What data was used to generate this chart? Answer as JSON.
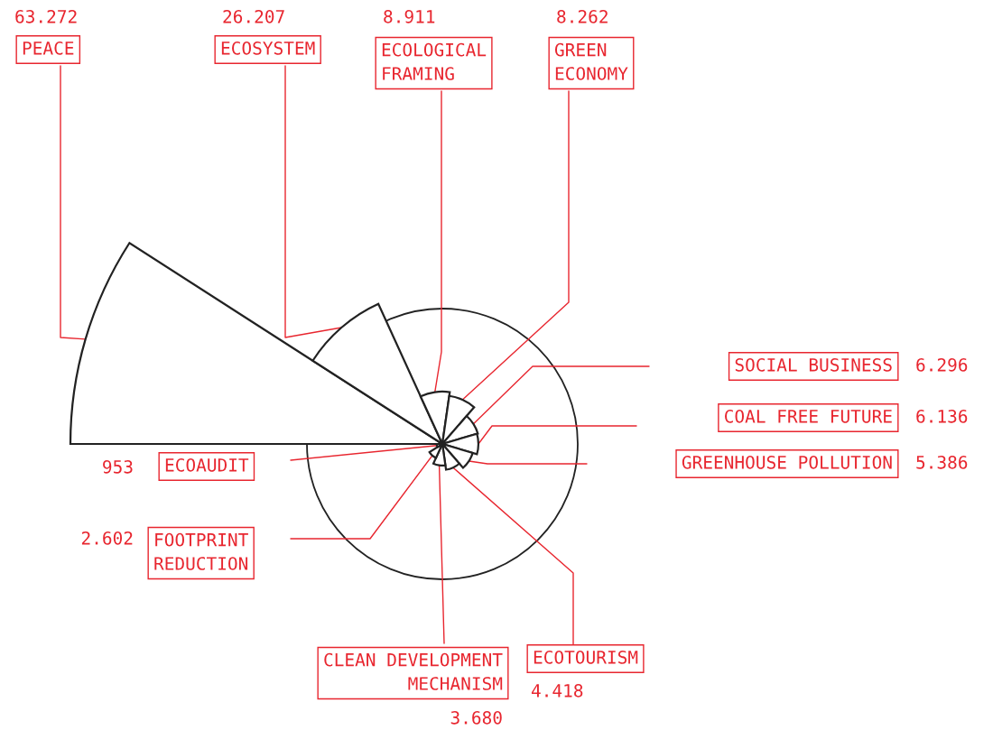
{
  "chart_data": {
    "type": "other",
    "categories": [
      "PEACE",
      "ECOSYSTEM",
      "ECOLOGICAL\nFRAMING",
      "GREEN\nECONOMY",
      "SOCIAL BUSINESS",
      "COAL FREE FUTURE",
      "GREENHOUSE POLLUTION",
      "ECOTOURISM",
      "CLEAN DEVELOPMENT\nMECHANISM",
      "FOOTPRINT\nREDUCTION",
      "ECOAUDIT"
    ],
    "values": [
      63272,
      26207,
      8911,
      8262,
      6296,
      6136,
      5386,
      4418,
      3680,
      2602,
      953
    ],
    "value_labels": [
      "63.272",
      "26.207",
      "8.911",
      "8.262",
      "6.296",
      "6.136",
      "5.386",
      "4.418",
      "3.680",
      "2.602",
      "953"
    ]
  }
}
